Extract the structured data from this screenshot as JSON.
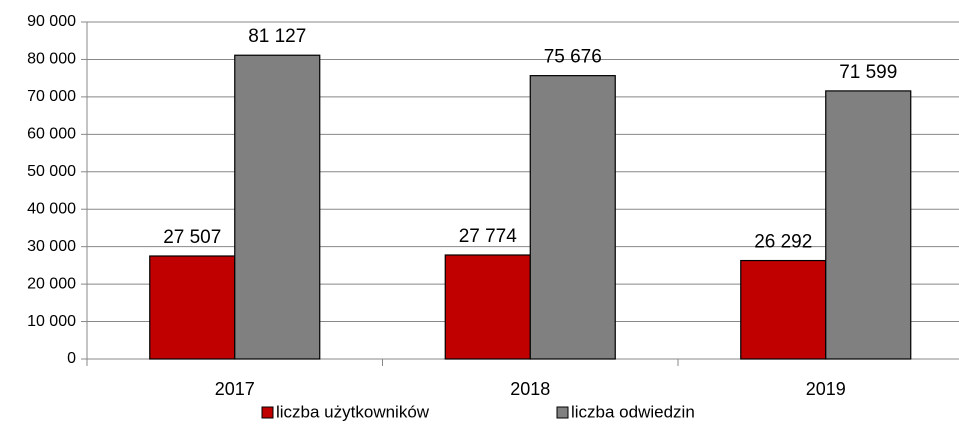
{
  "chart_data": {
    "type": "bar",
    "categories": [
      "2017",
      "2018",
      "2019"
    ],
    "series": [
      {
        "name": "liczba użytkowników",
        "color": "#c00000",
        "values": [
          27507,
          27774,
          26292
        ],
        "value_labels": [
          "27 507",
          "27 774",
          "26 292"
        ]
      },
      {
        "name": "liczba odwiedzin",
        "color": "#808080",
        "values": [
          81127,
          75676,
          71599
        ],
        "value_labels": [
          "81 127",
          "75 676",
          "71 599"
        ]
      }
    ],
    "ylim": [
      0,
      90000
    ],
    "yticks": [
      {
        "value": 0,
        "label": "0"
      },
      {
        "value": 10000,
        "label": "10 000"
      },
      {
        "value": 20000,
        "label": "20 000"
      },
      {
        "value": 30000,
        "label": "30 000"
      },
      {
        "value": 40000,
        "label": "40 000"
      },
      {
        "value": 50000,
        "label": "50 000"
      },
      {
        "value": 60000,
        "label": "60 000"
      },
      {
        "value": 70000,
        "label": "70 000"
      },
      {
        "value": 80000,
        "label": "80 000"
      },
      {
        "value": 90000,
        "label": "90 000"
      }
    ],
    "grid": true,
    "legend": "bottom"
  }
}
